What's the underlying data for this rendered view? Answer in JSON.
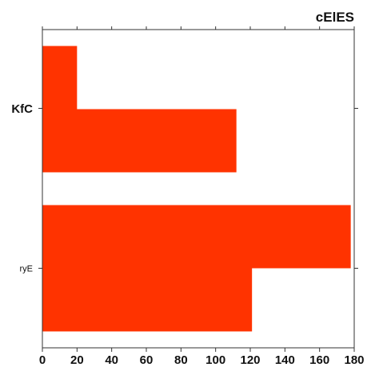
{
  "chart_data": {
    "type": "bar",
    "orientation": "horizontal",
    "title": "cElES",
    "categories": [
      "KfC",
      "ryE"
    ],
    "series": [
      {
        "values": [
          20,
          178
        ]
      },
      {
        "values": [
          112,
          121
        ]
      }
    ],
    "xlim": [
      0,
      180
    ],
    "xticks": [
      0,
      20,
      40,
      60,
      80,
      100,
      120,
      140,
      160,
      180
    ],
    "grid": false,
    "bar_color": "#ff3300"
  }
}
